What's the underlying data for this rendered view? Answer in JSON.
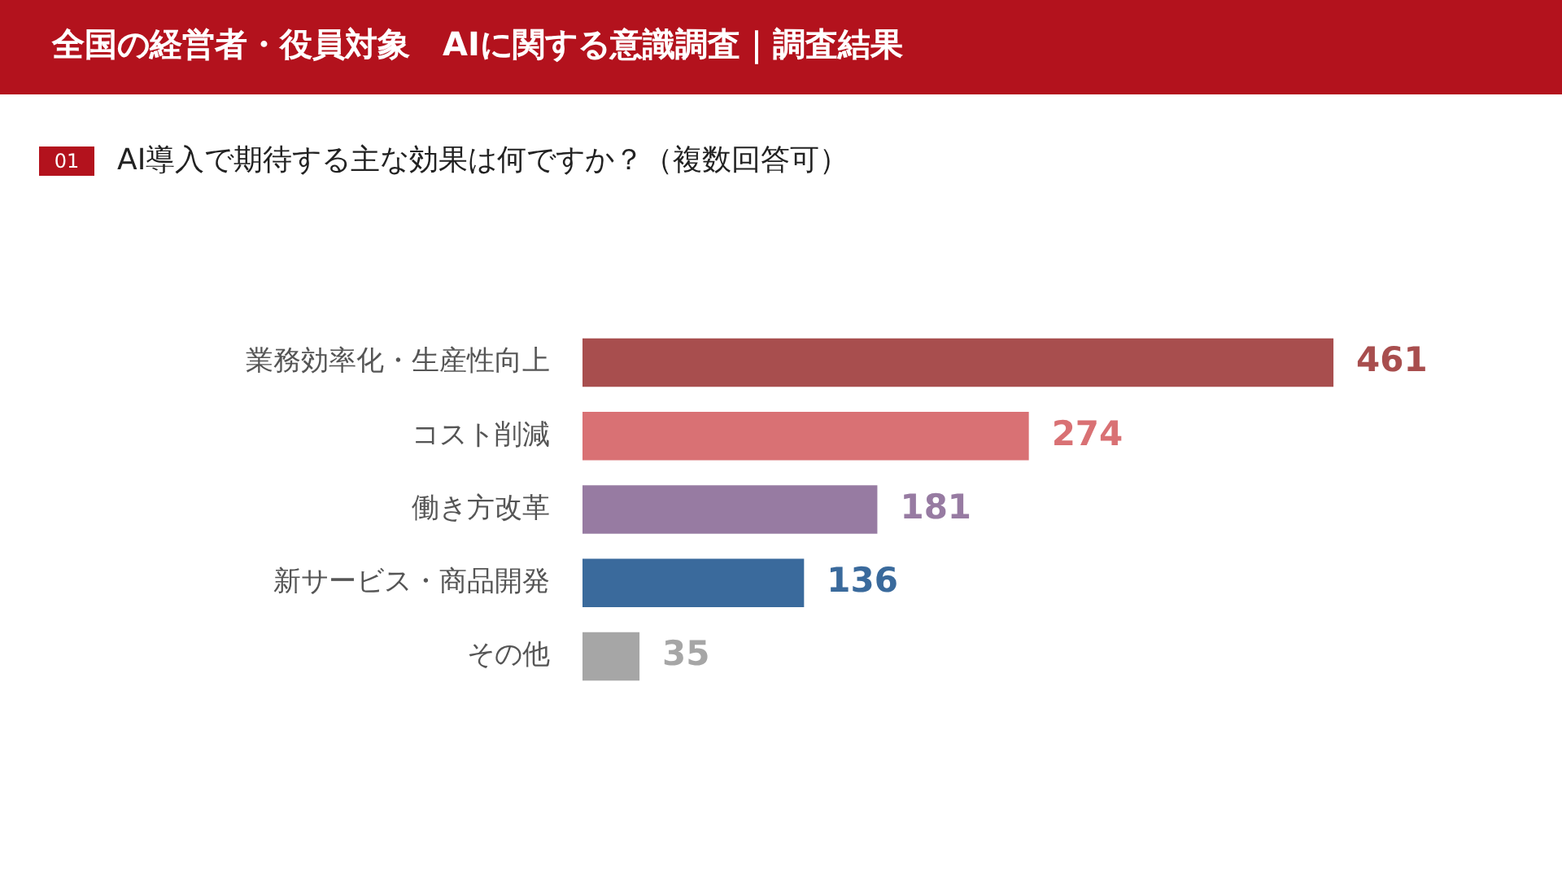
{
  "chart_data": {
    "type": "bar",
    "orientation": "horizontal",
    "title": "全国の経営者・役員対象　AIに関する意識調査｜調査結果",
    "subtitle": "AI導入で期待する主な効果は何ですか？（複数回答可）",
    "annotations": [
      "01"
    ],
    "categories": [
      "業務効率化・生産性向上",
      "コスト削減",
      "働き方改革",
      "新サービス・商品開発",
      "その他"
    ],
    "values": [
      461,
      274,
      181,
      136,
      35
    ],
    "colors": [
      "#a84e4e",
      "#d97174",
      "#977ba2",
      "#3a6a9c",
      "#a6a6a6"
    ],
    "data_labels": true,
    "legend": false
  }
}
